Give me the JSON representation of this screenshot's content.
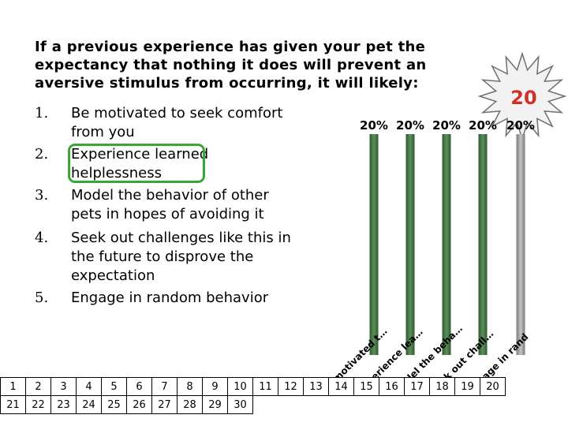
{
  "question": "If a previous experience has given your pet the expectancy that nothing it does will prevent an aversive stimulus from occurring, it will likely:",
  "answers": [
    {
      "num": "1.",
      "text": "Be motivated to seek comfort from you"
    },
    {
      "num": "2.",
      "text": "Experience learned helplessness"
    },
    {
      "num": "3.",
      "text": "Model the behavior of other pets in hopes of avoiding it"
    },
    {
      "num": "4.",
      "text": "Seek out challenges like this in the future to disprove the expectation"
    },
    {
      "num": "5.",
      "text": "Engage in random behavior"
    }
  ],
  "timer": {
    "value": "20",
    "color": "#d0302a"
  },
  "chart_data": {
    "type": "bar",
    "categories": [
      "Be motivated t…",
      "Experience lea…",
      "Model the beha…",
      "Seek out chall…",
      "Engage in rand"
    ],
    "values": [
      20,
      20,
      20,
      20,
      20
    ],
    "value_labels": [
      "20%",
      "20%",
      "20%",
      "20%",
      "20%"
    ],
    "colors": [
      "#3f6e3f",
      "#3f6e3f",
      "#3f6e3f",
      "#3f6e3f",
      "#9a9a9a"
    ]
  },
  "participant_grid": {
    "row1": [
      "1",
      "2",
      "3",
      "4",
      "5",
      "6",
      "7",
      "8",
      "9",
      "10",
      "11",
      "12",
      "13",
      "14",
      "15",
      "16",
      "17",
      "18",
      "19",
      "20"
    ],
    "row2": [
      "21",
      "22",
      "23",
      "24",
      "25",
      "26",
      "27",
      "28",
      "29",
      "30"
    ]
  }
}
